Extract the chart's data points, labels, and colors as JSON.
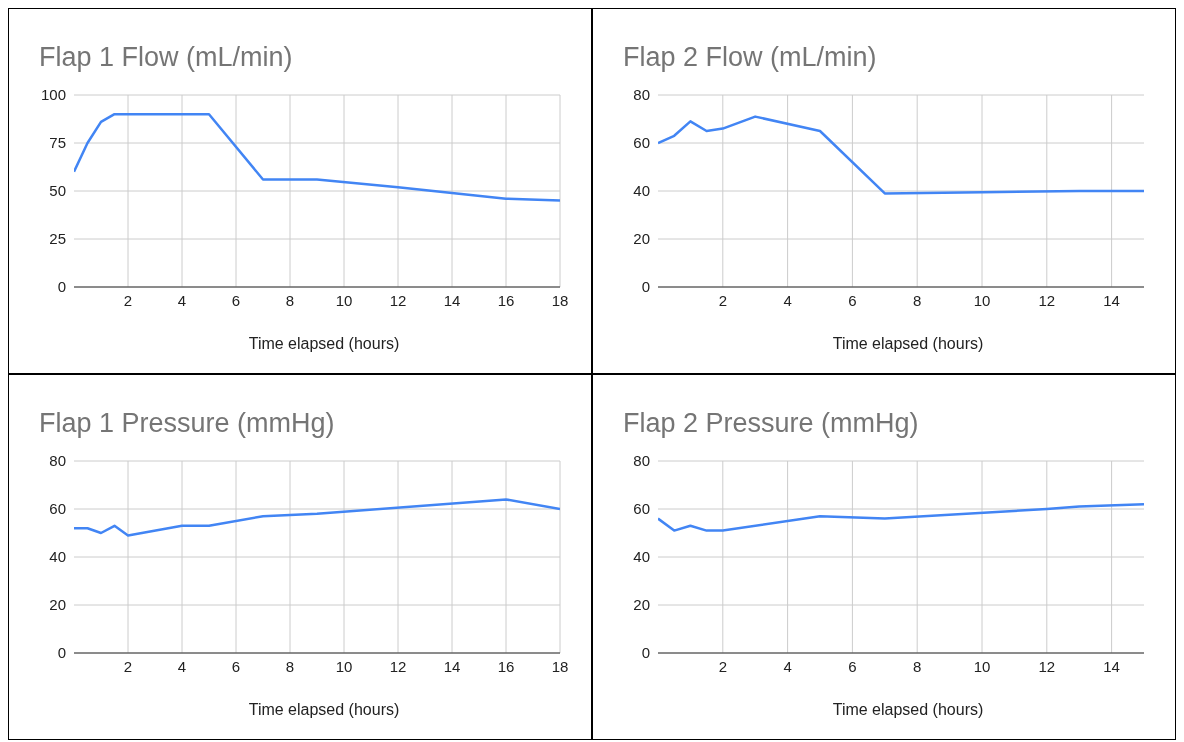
{
  "chart_data": [
    {
      "type": "line",
      "title": "Flap 1 Flow (mL/min)",
      "xlabel": "Time elapsed (hours)",
      "color": "#4285f4",
      "grid": true,
      "x": [
        0,
        0.5,
        1,
        1.5,
        5,
        7,
        9,
        12,
        14,
        16,
        18
      ],
      "values": [
        60,
        75,
        86,
        90,
        90,
        56,
        56,
        52,
        49,
        46,
        45
      ],
      "xlim": [
        0,
        18
      ],
      "xticks": [
        2,
        4,
        6,
        8,
        10,
        12,
        14,
        16,
        18
      ],
      "ylim": [
        0,
        100
      ],
      "yticks": [
        0,
        25,
        50,
        75,
        100
      ]
    },
    {
      "type": "line",
      "title": "Flap 2 Flow (mL/min)",
      "xlabel": "Time elapsed (hours)",
      "color": "#4285f4",
      "grid": true,
      "x": [
        0,
        0.5,
        1,
        1.5,
        2,
        3,
        5,
        7,
        10,
        13,
        15
      ],
      "values": [
        60,
        63,
        69,
        65,
        66,
        71,
        65,
        39,
        39.5,
        40,
        40
      ],
      "xlim": [
        0,
        15
      ],
      "xticks": [
        2,
        4,
        6,
        8,
        10,
        12,
        14
      ],
      "ylim": [
        0,
        80
      ],
      "yticks": [
        0,
        20,
        40,
        60,
        80
      ]
    },
    {
      "type": "line",
      "title": "Flap 1 Pressure (mmHg)",
      "xlabel": "Time elapsed (hours)",
      "color": "#4285f4",
      "grid": true,
      "x": [
        0,
        0.5,
        1,
        1.5,
        2,
        4,
        5,
        7,
        9,
        16,
        18
      ],
      "values": [
        52,
        52,
        50,
        53,
        49,
        53,
        53,
        57,
        58,
        64,
        60
      ],
      "xlim": [
        0,
        18
      ],
      "xticks": [
        2,
        4,
        6,
        8,
        10,
        12,
        14,
        16,
        18
      ],
      "ylim": [
        0,
        80
      ],
      "yticks": [
        0,
        20,
        40,
        60,
        80
      ]
    },
    {
      "type": "line",
      "title": "Flap 2 Pressure (mmHg)",
      "xlabel": "Time elapsed (hours)",
      "color": "#4285f4",
      "grid": true,
      "x": [
        0,
        0.5,
        1,
        1.5,
        2,
        5,
        7,
        12,
        13,
        15
      ],
      "values": [
        56,
        51,
        53,
        51,
        51,
        57,
        56,
        60,
        61,
        62
      ],
      "xlim": [
        0,
        15
      ],
      "xticks": [
        2,
        4,
        6,
        8,
        10,
        12,
        14
      ],
      "ylim": [
        0,
        80
      ],
      "yticks": [
        0,
        20,
        40,
        60,
        80
      ]
    }
  ]
}
